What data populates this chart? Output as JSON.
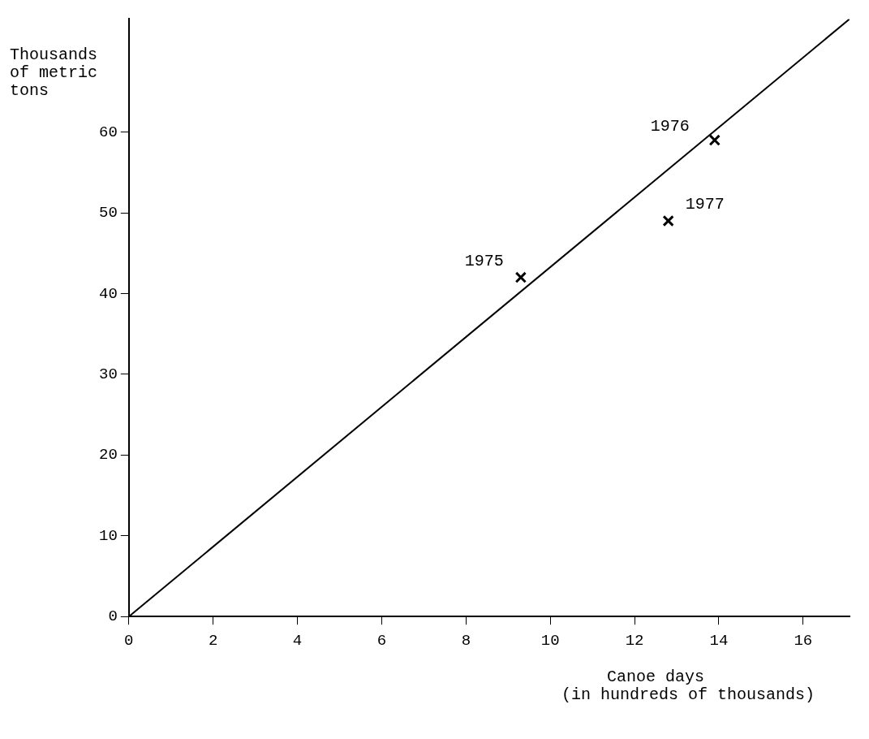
{
  "chart_data": {
    "type": "scatter",
    "xlabel": "Canoe days\n(in hundreds of thousands)",
    "ylabel": "Thousands\nof metric\ntons",
    "x": [
      9.3,
      13.9,
      12.8
    ],
    "values": [
      42,
      59,
      49
    ],
    "color": "#000000",
    "marker": "cross",
    "series": [
      {
        "type": "line",
        "x": [
          0,
          17.1
        ],
        "values": [
          0,
          74
        ],
        "color": "#000000",
        "marker": "none",
        "line_style": "solid"
      }
    ],
    "annotations": [
      {
        "text": "1975",
        "x": 9.3,
        "y": 42
      },
      {
        "text": "1976",
        "x": 13.9,
        "y": 59
      },
      {
        "text": "1977",
        "x": 12.8,
        "y": 49
      }
    ],
    "xlim": [
      0,
      17.1
    ],
    "xticks": [
      0,
      2,
      4,
      6,
      8,
      10,
      12,
      14,
      16
    ],
    "ylim": [
      0,
      74
    ],
    "yticks": [
      0,
      10,
      20,
      30,
      40,
      50,
      60
    ],
    "grid": false,
    "legend": false
  }
}
